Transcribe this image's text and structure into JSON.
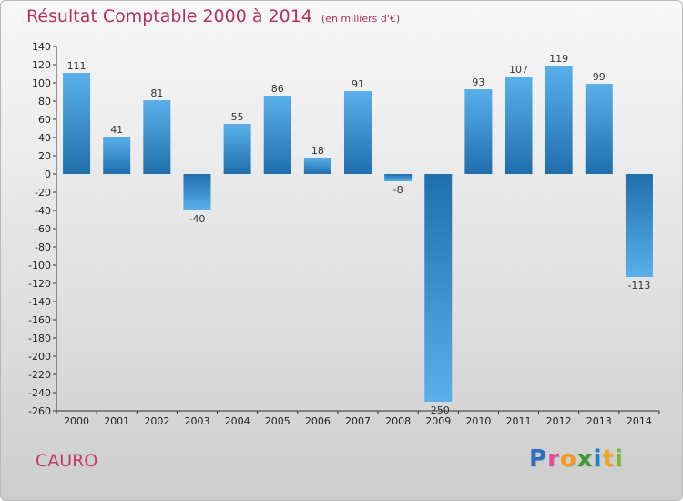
{
  "title": "Résultat Comptable 2000 à 2014",
  "unit": "(en milliers d'€)",
  "commune": "CAURO",
  "logo": {
    "letters": [
      "P",
      "r",
      "o",
      "x",
      "i",
      "t",
      "i"
    ],
    "colors": [
      "#2f6fc2",
      "#e14d9c",
      "#f39a1c",
      "#3a9a2e",
      "#1a7fcf",
      "#f4a31a",
      "#7bbb2a"
    ]
  },
  "colors": {
    "bar_top": "#5ab0ea",
    "bar_bottom": "#1f6fad",
    "title": "#b2325c"
  },
  "chart_data": {
    "type": "bar",
    "categories": [
      "2000",
      "2001",
      "2002",
      "2003",
      "2004",
      "2005",
      "2006",
      "2007",
      "2008",
      "2009",
      "2010",
      "2011",
      "2012",
      "2013",
      "2014"
    ],
    "values": [
      111,
      41,
      81,
      -40,
      55,
      86,
      18,
      91,
      -8,
      -250,
      93,
      107,
      119,
      99,
      -113
    ],
    "labels": [
      "111",
      "41",
      "81",
      "-40",
      "55",
      "86",
      "18",
      "91",
      "-8",
      "-250",
      "93",
      "107",
      "119",
      "99",
      "-113"
    ],
    "ylim": [
      -260,
      140
    ],
    "yticks": [
      140,
      120,
      100,
      80,
      60,
      40,
      20,
      0,
      -20,
      -40,
      -60,
      -80,
      -100,
      -120,
      -140,
      -160,
      -180,
      -200,
      -220,
      -240,
      -260
    ],
    "grid": false,
    "legend": "none"
  }
}
